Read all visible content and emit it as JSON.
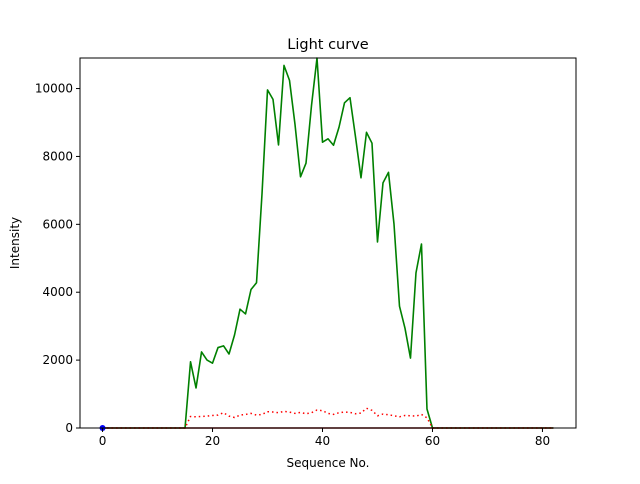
{
  "chart_data": {
    "type": "line",
    "title": "Light curve",
    "xlabel": "Sequence No.",
    "ylabel": "Intensity",
    "xlim": [
      -4.1,
      86.1
    ],
    "ylim": [
      0,
      10900
    ],
    "xticks": [
      0,
      20,
      40,
      60,
      80
    ],
    "yticks": [
      0,
      2000,
      4000,
      6000,
      8000,
      10000
    ],
    "grid": false,
    "legend": "none",
    "colors": {
      "main": "#008000",
      "dotted": "#ff0000",
      "baseline": "#800000",
      "marker": "#0000ff"
    },
    "series": [
      {
        "style": "solid",
        "color": "#008000",
        "x": [
          0,
          15,
          16,
          17,
          18,
          19,
          20,
          21,
          22,
          23,
          24,
          25,
          26,
          27,
          28,
          29,
          30,
          31,
          32,
          33,
          34,
          35,
          36,
          37,
          38,
          39,
          40,
          41,
          42,
          43,
          44,
          45,
          46,
          47,
          48,
          49,
          50,
          51,
          52,
          53,
          54,
          55,
          56,
          57,
          58,
          59,
          60,
          82
        ],
        "y": [
          0,
          0,
          1950,
          1180,
          2240,
          2000,
          1910,
          2370,
          2420,
          2180,
          2740,
          3500,
          3360,
          4080,
          4280,
          6900,
          9960,
          9680,
          8340,
          10680,
          10240,
          8940,
          7400,
          7800,
          9500,
          10900,
          8420,
          8520,
          8330,
          8860,
          9580,
          9730,
          8580,
          7370,
          8710,
          8390,
          5480,
          7220,
          7530,
          6010,
          3590,
          2940,
          2060,
          4570,
          5420,
          560,
          0,
          0
        ]
      },
      {
        "style": "dotted",
        "color": "#ff0000",
        "x": [
          0,
          15,
          16,
          17,
          18,
          19,
          20,
          21,
          22,
          23,
          24,
          25,
          26,
          27,
          28,
          29,
          30,
          31,
          32,
          33,
          34,
          35,
          36,
          37,
          38,
          39,
          40,
          41,
          42,
          43,
          44,
          45,
          46,
          47,
          48,
          49,
          50,
          51,
          52,
          53,
          54,
          55,
          56,
          57,
          58,
          59,
          60,
          82
        ],
        "y": [
          0,
          0,
          340,
          330,
          340,
          350,
          370,
          380,
          450,
          350,
          310,
          380,
          400,
          430,
          380,
          400,
          480,
          470,
          450,
          490,
          470,
          430,
          460,
          420,
          450,
          530,
          510,
          430,
          400,
          450,
          470,
          460,
          420,
          440,
          580,
          520,
          360,
          410,
          390,
          360,
          330,
          370,
          360,
          350,
          400,
          300,
          0,
          0
        ]
      },
      {
        "style": "solid",
        "color": "#800000",
        "x": [
          0,
          82
        ],
        "y": [
          0,
          0
        ]
      },
      {
        "style": "marker",
        "color": "#0000ff",
        "x": [
          0
        ],
        "y": [
          0
        ]
      }
    ]
  }
}
